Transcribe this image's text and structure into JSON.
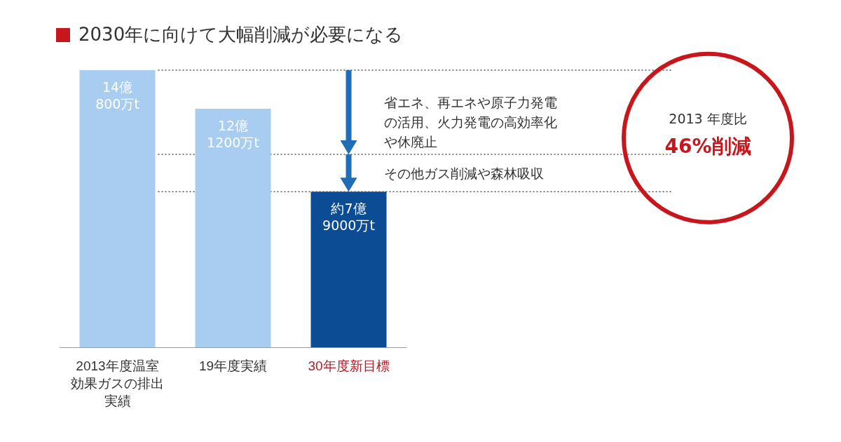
{
  "chart_data": {
    "type": "bar",
    "title": "2030年に向けて大幅削減が必要になる",
    "categories": [
      "2013年度温室効果ガスの排出実績",
      "19年度実績",
      "30年度新目標"
    ],
    "values": [
      14.08,
      12.12,
      7.9
    ],
    "value_labels": [
      "14億\n800万t",
      "12億\n1200万t",
      "約7億\n9000万t"
    ],
    "colors": [
      "#a8cdf1",
      "#a8cdf1",
      "#0b4c94"
    ],
    "ref_lines": [
      {
        "axis": "y",
        "value": 14.08,
        "color": "#555555",
        "line_style": "dotted"
      },
      {
        "axis": "y",
        "value": 9.8,
        "color": "#555555",
        "line_style": "dotted"
      },
      {
        "axis": "y",
        "value": 7.9,
        "color": "#555555",
        "line_style": "dotted"
      }
    ],
    "annotations": [
      "省エネ、再エネや原子力発電の活用、火力発電の高効率化や休廃止",
      "その他ガス削減や森林吸収",
      "2013 年度比",
      "46%削減"
    ],
    "grid": false
  }
}
